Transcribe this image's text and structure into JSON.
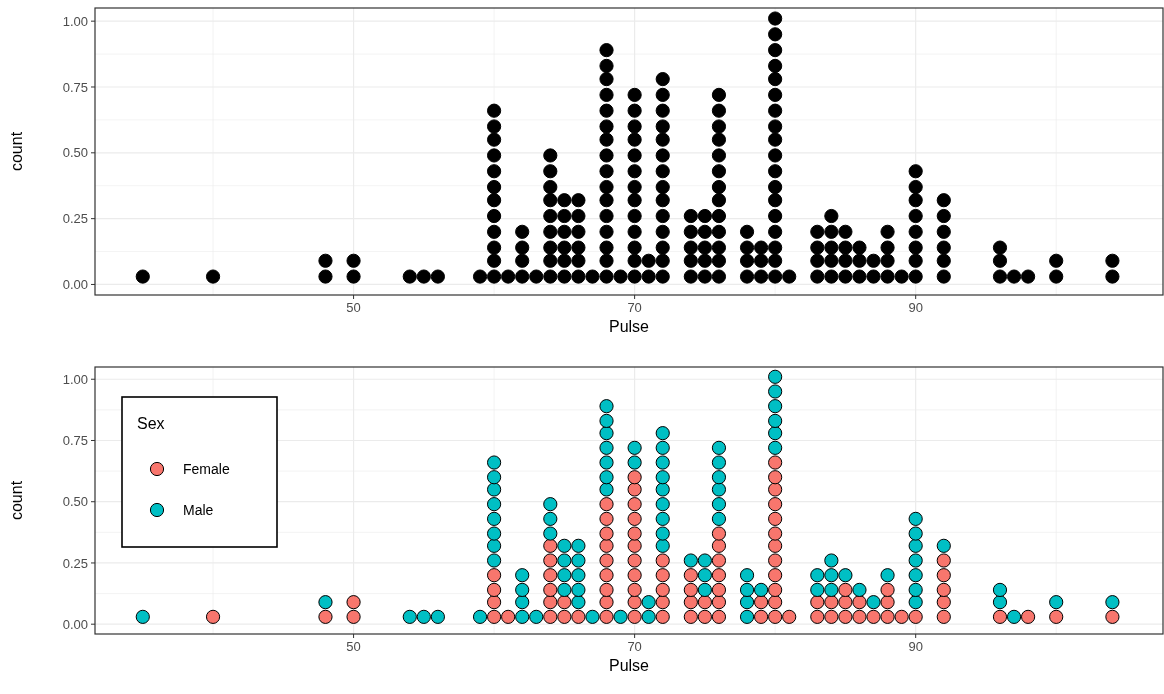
{
  "chart_data": [
    {
      "type": "scatter",
      "xlabel": "Pulse",
      "ylabel": "count",
      "xlim": [
        31.6,
        107.6
      ],
      "xticks": [
        50,
        70,
        90
      ],
      "ylim": [
        -0.04,
        1.05
      ],
      "yticks": [
        {
          "value": 0,
          "label": "0.00"
        },
        {
          "value": 0.25,
          "label": "0.25"
        },
        {
          "value": 0.5,
          "label": "0.50"
        },
        {
          "value": 0.75,
          "label": "0.75"
        },
        {
          "value": 1,
          "label": "1.00"
        }
      ],
      "grid": true,
      "marker": "circle",
      "series": [
        {
          "color": "#000000",
          "x": [
            35,
            40,
            48,
            48,
            50,
            50,
            54,
            55,
            56,
            59,
            60,
            60,
            60,
            60,
            60,
            60,
            60,
            60,
            60,
            60,
            60,
            60,
            61,
            62,
            62,
            62,
            62,
            63,
            64,
            64,
            64,
            64,
            64,
            64,
            64,
            64,
            64,
            65,
            65,
            65,
            65,
            65,
            65,
            66,
            66,
            66,
            66,
            66,
            66,
            67,
            68,
            68,
            68,
            68,
            68,
            68,
            68,
            68,
            68,
            68,
            68,
            68,
            68,
            68,
            68,
            68,
            69,
            70,
            70,
            70,
            70,
            70,
            70,
            70,
            70,
            70,
            70,
            70,
            70,
            70,
            71,
            71,
            72,
            72,
            72,
            72,
            72,
            72,
            72,
            72,
            72,
            72,
            72,
            72,
            72,
            72,
            74,
            74,
            74,
            74,
            74,
            75,
            75,
            75,
            75,
            75,
            76,
            76,
            76,
            76,
            76,
            76,
            76,
            76,
            76,
            76,
            76,
            76,
            76,
            78,
            78,
            78,
            78,
            79,
            79,
            79,
            80,
            80,
            80,
            80,
            80,
            80,
            80,
            80,
            80,
            80,
            80,
            80,
            80,
            80,
            80,
            80,
            80,
            80,
            81,
            83,
            83,
            83,
            83,
            84,
            84,
            84,
            84,
            84,
            85,
            85,
            85,
            85,
            86,
            86,
            86,
            87,
            87,
            88,
            88,
            88,
            88,
            89,
            90,
            90,
            90,
            90,
            90,
            90,
            90,
            90,
            92,
            92,
            92,
            92,
            92,
            92,
            96,
            96,
            96,
            97,
            98,
            100,
            100,
            104,
            104
          ],
          "values": [
            0.03,
            0.03,
            0.03,
            0.09,
            0.03,
            0.09,
            0.03,
            0.03,
            0.03,
            0.03,
            0.03,
            0.09,
            0.14,
            0.2,
            0.26,
            0.32,
            0.37,
            0.43,
            0.49,
            0.55,
            0.6,
            0.66,
            0.03,
            0.03,
            0.09,
            0.14,
            0.2,
            0.03,
            0.03,
            0.09,
            0.14,
            0.2,
            0.26,
            0.32,
            0.37,
            0.43,
            0.49,
            0.03,
            0.09,
            0.14,
            0.2,
            0.26,
            0.32,
            0.03,
            0.09,
            0.14,
            0.2,
            0.26,
            0.32,
            0.03,
            0.03,
            0.09,
            0.14,
            0.2,
            0.26,
            0.32,
            0.37,
            0.43,
            0.49,
            0.55,
            0.6,
            0.66,
            0.72,
            0.78,
            0.83,
            0.89,
            0.03,
            0.03,
            0.09,
            0.14,
            0.2,
            0.26,
            0.32,
            0.37,
            0.43,
            0.49,
            0.55,
            0.6,
            0.66,
            0.72,
            0.03,
            0.09,
            0.03,
            0.09,
            0.14,
            0.2,
            0.26,
            0.32,
            0.37,
            0.43,
            0.49,
            0.55,
            0.6,
            0.66,
            0.72,
            0.78,
            0.03,
            0.09,
            0.14,
            0.2,
            0.26,
            0.03,
            0.09,
            0.14,
            0.2,
            0.26,
            0.03,
            0.09,
            0.14,
            0.2,
            0.26,
            0.32,
            0.37,
            0.43,
            0.49,
            0.55,
            0.6,
            0.66,
            0.72,
            0.03,
            0.09,
            0.14,
            0.2,
            0.03,
            0.09,
            0.14,
            0.03,
            0.09,
            0.14,
            0.2,
            0.26,
            0.32,
            0.37,
            0.43,
            0.49,
            0.55,
            0.6,
            0.66,
            0.72,
            0.78,
            0.83,
            0.89,
            0.95,
            1.01,
            0.03,
            0.03,
            0.09,
            0.14,
            0.2,
            0.03,
            0.09,
            0.14,
            0.2,
            0.26,
            0.03,
            0.09,
            0.14,
            0.2,
            0.03,
            0.09,
            0.14,
            0.03,
            0.09,
            0.03,
            0.09,
            0.14,
            0.2,
            0.03,
            0.03,
            0.09,
            0.14,
            0.2,
            0.26,
            0.32,
            0.37,
            0.43,
            0.03,
            0.09,
            0.14,
            0.2,
            0.26,
            0.32,
            0.03,
            0.09,
            0.14,
            0.03,
            0.03,
            0.03,
            0.09,
            0.03,
            0.09
          ]
        }
      ]
    },
    {
      "type": "scatter",
      "xlabel": "Pulse",
      "ylabel": "count",
      "xlim": [
        31.6,
        107.6
      ],
      "xticks": [
        50,
        70,
        90
      ],
      "ylim": [
        -0.04,
        1.05
      ],
      "yticks": [
        {
          "value": 0,
          "label": "0.00"
        },
        {
          "value": 0.25,
          "label": "0.25"
        },
        {
          "value": 0.5,
          "label": "0.50"
        },
        {
          "value": 0.75,
          "label": "0.75"
        },
        {
          "value": 1,
          "label": "1.00"
        }
      ],
      "grid": true,
      "marker": "circle",
      "legend": "top left",
      "legend_title": "Sex",
      "series": [
        {
          "name": "Female",
          "color": "#f8766d",
          "x": [
            40,
            48,
            50,
            50,
            60,
            60,
            60,
            60,
            61,
            64,
            64,
            64,
            64,
            64,
            64,
            65,
            65,
            66,
            68,
            68,
            68,
            68,
            68,
            68,
            68,
            68,
            68,
            70,
            70,
            70,
            70,
            70,
            70,
            70,
            70,
            70,
            70,
            70,
            72,
            72,
            72,
            72,
            72,
            74,
            74,
            74,
            74,
            75,
            75,
            76,
            76,
            76,
            76,
            76,
            76,
            76,
            79,
            79,
            80,
            80,
            80,
            80,
            80,
            80,
            80,
            80,
            80,
            80,
            80,
            80,
            81,
            83,
            83,
            84,
            84,
            85,
            85,
            85,
            86,
            86,
            87,
            88,
            88,
            88,
            89,
            90,
            92,
            92,
            92,
            92,
            92,
            96,
            98,
            100,
            104
          ],
          "values": [
            0.03,
            0.03,
            0.03,
            0.09,
            0.03,
            0.09,
            0.14,
            0.2,
            0.03,
            0.03,
            0.09,
            0.14,
            0.2,
            0.26,
            0.32,
            0.03,
            0.09,
            0.03,
            0.03,
            0.09,
            0.14,
            0.2,
            0.26,
            0.32,
            0.37,
            0.43,
            0.49,
            0.03,
            0.09,
            0.14,
            0.2,
            0.26,
            0.32,
            0.37,
            0.43,
            0.49,
            0.55,
            0.6,
            0.03,
            0.09,
            0.14,
            0.2,
            0.26,
            0.03,
            0.09,
            0.14,
            0.2,
            0.03,
            0.09,
            0.03,
            0.09,
            0.14,
            0.2,
            0.26,
            0.32,
            0.37,
            0.03,
            0.09,
            0.03,
            0.09,
            0.14,
            0.2,
            0.26,
            0.32,
            0.37,
            0.43,
            0.49,
            0.55,
            0.6,
            0.66,
            0.03,
            0.03,
            0.09,
            0.03,
            0.09,
            0.03,
            0.09,
            0.14,
            0.03,
            0.09,
            0.03,
            0.03,
            0.09,
            0.14,
            0.03,
            0.03,
            0.03,
            0.09,
            0.14,
            0.2,
            0.26,
            0.03,
            0.03,
            0.03,
            0.03
          ]
        },
        {
          "name": "Male",
          "color": "#00bfc4",
          "x": [
            35,
            48,
            54,
            55,
            56,
            59,
            60,
            60,
            60,
            60,
            60,
            60,
            60,
            60,
            62,
            62,
            62,
            62,
            63,
            64,
            64,
            64,
            65,
            65,
            65,
            65,
            66,
            66,
            66,
            66,
            66,
            67,
            68,
            68,
            68,
            68,
            68,
            68,
            68,
            69,
            70,
            70,
            71,
            71,
            72,
            72,
            72,
            72,
            72,
            72,
            72,
            72,
            72,
            74,
            75,
            75,
            75,
            76,
            76,
            76,
            76,
            76,
            76,
            78,
            78,
            78,
            78,
            79,
            80,
            80,
            80,
            80,
            80,
            80,
            83,
            83,
            84,
            84,
            84,
            85,
            86,
            87,
            88,
            90,
            90,
            90,
            90,
            90,
            90,
            90,
            92,
            96,
            96,
            97,
            100,
            104
          ],
          "values": [
            0.03,
            0.09,
            0.03,
            0.03,
            0.03,
            0.03,
            0.26,
            0.32,
            0.37,
            0.43,
            0.49,
            0.55,
            0.6,
            0.66,
            0.03,
            0.09,
            0.14,
            0.2,
            0.03,
            0.37,
            0.43,
            0.49,
            0.14,
            0.2,
            0.26,
            0.32,
            0.09,
            0.14,
            0.2,
            0.26,
            0.32,
            0.03,
            0.55,
            0.6,
            0.66,
            0.72,
            0.78,
            0.83,
            0.89,
            0.03,
            0.66,
            0.72,
            0.03,
            0.09,
            0.32,
            0.37,
            0.43,
            0.49,
            0.55,
            0.6,
            0.66,
            0.72,
            0.78,
            0.26,
            0.14,
            0.2,
            0.26,
            0.43,
            0.49,
            0.55,
            0.6,
            0.66,
            0.72,
            0.03,
            0.09,
            0.14,
            0.2,
            0.14,
            0.72,
            0.78,
            0.83,
            0.89,
            0.95,
            1.01,
            0.14,
            0.2,
            0.14,
            0.2,
            0.26,
            0.2,
            0.14,
            0.09,
            0.2,
            0.09,
            0.14,
            0.2,
            0.26,
            0.32,
            0.37,
            0.43,
            0.32,
            0.09,
            0.14,
            0.03,
            0.09,
            0.09
          ]
        }
      ]
    }
  ]
}
